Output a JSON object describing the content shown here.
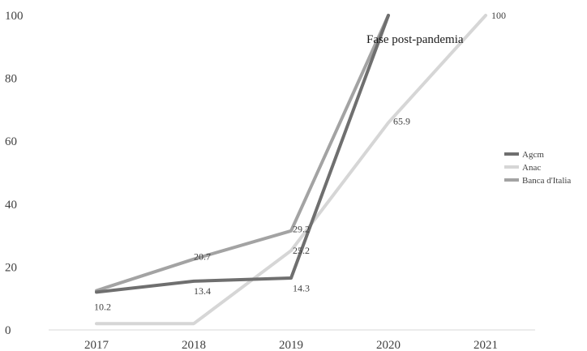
{
  "chart_data": {
    "type": "line",
    "title": "",
    "xlabel": "",
    "ylabel": "",
    "categories": [
      "2017",
      "2018",
      "2019",
      "2020",
      "2021"
    ],
    "ylim": [
      0,
      100
    ],
    "yticks": [
      0,
      20,
      40,
      60,
      80,
      100
    ],
    "grid": false,
    "legend_position": "right",
    "series": [
      {
        "name": "Agcm",
        "color": "#6f6f6f",
        "values": [
          12,
          15.5,
          16.5,
          100,
          null
        ]
      },
      {
        "name": "Anac",
        "color": "#d6d6d6",
        "values": [
          2,
          2,
          25.2,
          65.9,
          100
        ]
      },
      {
        "name": "Banca d'Italia",
        "color": "#a3a3a3",
        "values": [
          12.5,
          22.5,
          31.5,
          100,
          null
        ]
      }
    ],
    "data_labels": [
      {
        "category": "2017",
        "value": 10.2,
        "text": "10.2"
      },
      {
        "category": "2018",
        "value": 20.7,
        "text": "20.7"
      },
      {
        "category": "2018",
        "value": 13.4,
        "text": "13.4"
      },
      {
        "category": "2019",
        "value": 29.2,
        "text": "29.2"
      },
      {
        "category": "2019",
        "value": 25.2,
        "text": "25.2"
      },
      {
        "category": "2019",
        "value": 14.3,
        "text": "14.3"
      },
      {
        "category": "2020",
        "value": 65.9,
        "text": "65.9"
      },
      {
        "category": "2021",
        "value": 100,
        "text": "100"
      }
    ],
    "annotation": "Fase post-pandemia"
  }
}
